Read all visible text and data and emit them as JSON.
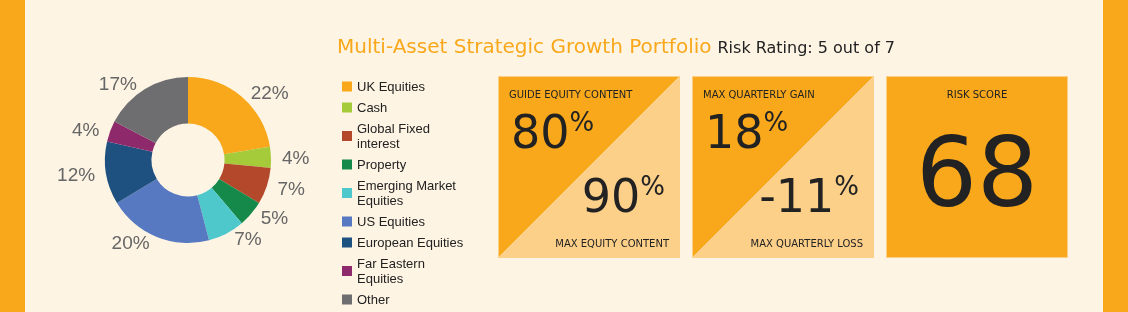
{
  "chart_data": [
    {
      "type": "donut",
      "categories": [
        "UK Equities",
        "Cash",
        "Global Fixed interest",
        "Property",
        "Emerging Market Equities",
        "US Equities",
        "European Equities",
        "Far Eastern Equities",
        "Other"
      ],
      "values": [
        22,
        4,
        7,
        5,
        7,
        20,
        12,
        4,
        17
      ],
      "colors": [
        "#f9a81b",
        "#a6cb3a",
        "#b3482a",
        "#14894a",
        "#4fc8cc",
        "#5779c2",
        "#1e5180",
        "#8e2a6c",
        "#6e6e70"
      ],
      "value_labels": [
        "22%",
        "4%",
        "7%",
        "5%",
        "7%",
        "20%",
        "12%",
        "4%",
        "17%"
      ],
      "legend": "right"
    },
    {
      "type": "other",
      "title": "Multi-Asset Strategic Growth Portfolio",
      "subtitle": "Risk Rating: 5 out of 7",
      "annotations": [
        "GUIDE EQUITY CONTENT",
        "80%",
        "90%",
        "MAX EQUITY CONTENT",
        "MAX QUARTERLY GAIN",
        "18%",
        "-11%",
        "MAX QUARTERLY LOSS",
        "RISK SCORE",
        "68"
      ]
    }
  ]
}
